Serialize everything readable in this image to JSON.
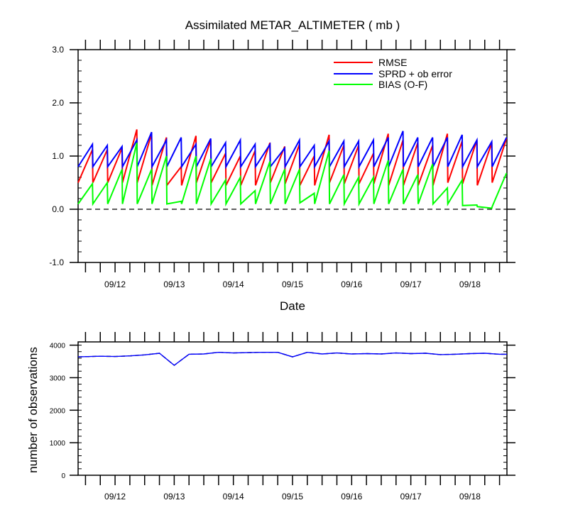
{
  "chart_data": [
    {
      "type": "line",
      "title": "Assimilated METAR_ALTIMETER ( mb )",
      "xlabel": "Date",
      "ylabel": "",
      "ylim": [
        -1.0,
        3.0
      ],
      "yticks": [
        "3.0",
        "2.0",
        "1.0",
        "0.0",
        "-1.0"
      ],
      "xticks": [
        "09/12",
        "09/13",
        "09/14",
        "09/15",
        "09/16",
        "09/17",
        "09/18"
      ],
      "zero_line": "dashed",
      "legend": {
        "placement": "top-right"
      },
      "colors": {
        "RMSE": "#ff0000",
        "SPRD": "#0000ff",
        "BIAS": "#00ff00"
      },
      "series": [
        {
          "name": "RMSE",
          "color": "#ff0000",
          "values": [
            [
              0.5,
              1.12
            ],
            [
              0.5,
              1.12
            ],
            [
              0.5,
              1.15
            ],
            [
              0.5,
              1.5
            ],
            [
              0.5,
              1.42
            ],
            [
              0.45,
              1.35
            ],
            [
              0.45,
              0.8
            ],
            [
              0.45,
              1.38
            ],
            [
              0.5,
              1.3
            ],
            [
              0.5,
              1.05
            ],
            [
              0.45,
              1.0
            ],
            [
              0.45,
              1.1
            ],
            [
              0.45,
              1.25
            ],
            [
              0.5,
              1.18
            ],
            [
              0.48,
              1.22
            ],
            [
              0.45,
              1.0
            ],
            [
              0.45,
              1.4
            ],
            [
              0.5,
              1.2
            ],
            [
              0.48,
              1.2
            ],
            [
              0.48,
              1.05
            ],
            [
              0.48,
              1.42
            ],
            [
              0.45,
              1.3
            ],
            [
              0.45,
              1.25
            ],
            [
              0.45,
              1.2
            ],
            [
              0.45,
              1.42
            ],
            [
              0.5,
              1.28
            ],
            [
              0.48,
              1.3
            ],
            [
              0.45,
              1.25
            ],
            [
              0.5,
              1.33
            ]
          ]
        },
        {
          "name": "SPRD + ob error",
          "color": "#0000ff",
          "values": [
            [
              0.8,
              1.22
            ],
            [
              0.8,
              1.2
            ],
            [
              0.8,
              1.18
            ],
            [
              0.8,
              1.3
            ],
            [
              0.8,
              1.45
            ],
            [
              0.8,
              1.3
            ],
            [
              0.8,
              1.35
            ],
            [
              0.8,
              1.22
            ],
            [
              0.8,
              1.33
            ],
            [
              0.8,
              1.25
            ],
            [
              0.8,
              1.3
            ],
            [
              0.8,
              1.22
            ],
            [
              0.8,
              1.22
            ],
            [
              0.8,
              1.15
            ],
            [
              0.8,
              1.3
            ],
            [
              0.8,
              1.2
            ],
            [
              0.8,
              1.28
            ],
            [
              0.8,
              1.28
            ],
            [
              0.8,
              1.28
            ],
            [
              0.8,
              1.3
            ],
            [
              0.8,
              1.35
            ],
            [
              0.8,
              1.47
            ],
            [
              0.8,
              1.35
            ],
            [
              0.8,
              1.35
            ],
            [
              0.8,
              1.35
            ],
            [
              0.8,
              1.4
            ],
            [
              0.8,
              1.3
            ],
            [
              0.8,
              1.27
            ],
            [
              0.8,
              1.35
            ]
          ]
        },
        {
          "name": "BIAS (O-F)",
          "color": "#00ff00",
          "values": [
            [
              0.1,
              0.48
            ],
            [
              0.1,
              0.5
            ],
            [
              0.1,
              0.75
            ],
            [
              0.1,
              1.25
            ],
            [
              0.1,
              0.75
            ],
            [
              0.1,
              1.0
            ],
            [
              0.1,
              0.15
            ],
            [
              0.1,
              1.0
            ],
            [
              0.1,
              0.95
            ],
            [
              0.1,
              0.55
            ],
            [
              0.1,
              0.6
            ],
            [
              0.1,
              0.35
            ],
            [
              0.1,
              0.9
            ],
            [
              0.1,
              0.75
            ],
            [
              0.1,
              0.75
            ],
            [
              0.12,
              0.3
            ],
            [
              0.1,
              1.1
            ],
            [
              0.1,
              0.65
            ],
            [
              0.1,
              0.6
            ],
            [
              0.1,
              0.6
            ],
            [
              0.1,
              0.92
            ],
            [
              0.1,
              0.75
            ],
            [
              0.1,
              0.65
            ],
            [
              0.1,
              0.85
            ],
            [
              0.1,
              0.4
            ],
            [
              0.1,
              0.55
            ],
            [
              0.07,
              0.08
            ],
            [
              0.05,
              0.02
            ],
            [
              0.05,
              0.68
            ]
          ]
        }
      ]
    },
    {
      "type": "line",
      "title": "",
      "xlabel": "",
      "ylabel": "number of observations",
      "ylim": [
        0,
        4100
      ],
      "yticks": [
        "4000",
        "3000",
        "2000",
        "1000",
        "0"
      ],
      "xticks": [
        "09/12",
        "09/13",
        "09/14",
        "09/15",
        "09/16",
        "09/17",
        "09/18"
      ],
      "series": [
        {
          "color": "#0000ff",
          "values": [
            3640,
            3660,
            3650,
            3670,
            3700,
            3750,
            3380,
            3720,
            3730,
            3780,
            3760,
            3770,
            3780,
            3780,
            3640,
            3780,
            3730,
            3760,
            3730,
            3740,
            3730,
            3760,
            3740,
            3750,
            3710,
            3720,
            3740,
            3750,
            3720
          ]
        }
      ]
    }
  ]
}
